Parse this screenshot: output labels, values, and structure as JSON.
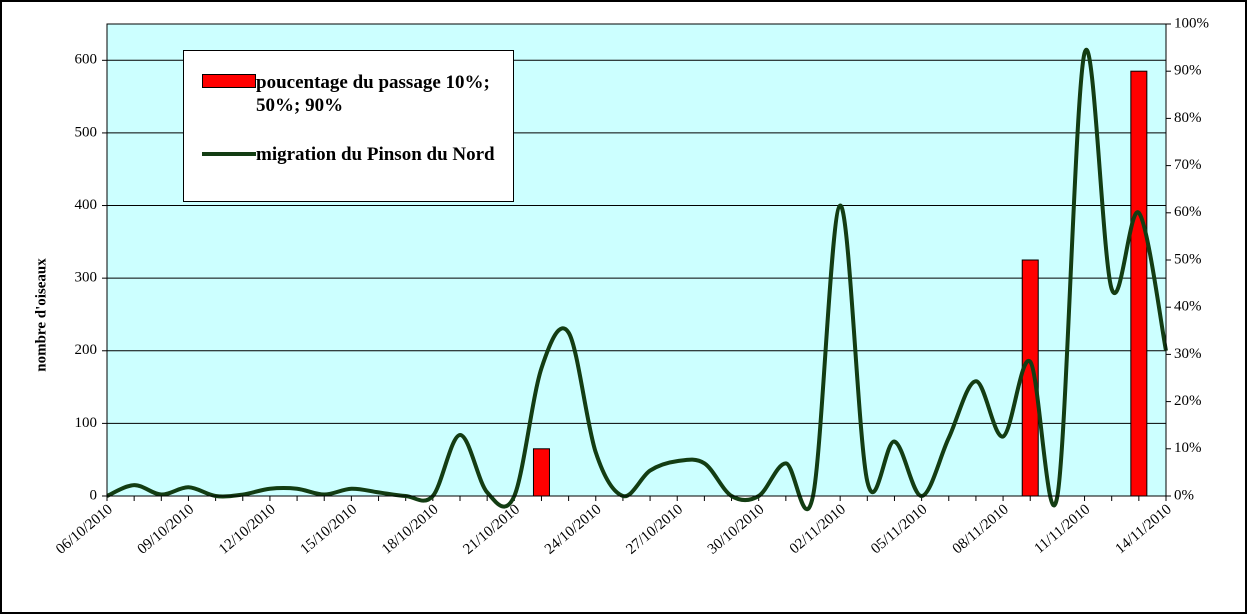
{
  "chart_data": {
    "type": "combo",
    "ylabel": "nombre d'oiseaux",
    "categories": [
      "06/10/2010",
      null,
      null,
      "09/10/2010",
      null,
      null,
      "12/10/2010",
      null,
      null,
      "15/10/2010",
      null,
      null,
      "18/10/2010",
      null,
      null,
      "21/10/2010",
      null,
      null,
      "24/10/2010",
      null,
      null,
      "27/10/2010",
      null,
      null,
      "30/10/2010",
      null,
      null,
      "02/11/2010",
      null,
      null,
      "05/11/2010",
      null,
      null,
      "08/11/2010",
      null,
      null,
      "11/11/2010",
      null,
      null,
      "14/11/2010"
    ],
    "series": [
      {
        "name": "poucentage du passage 10%; 50%; 90%",
        "type": "bar",
        "axis": "y2",
        "color": "#ff0000",
        "values": [
          null,
          null,
          null,
          null,
          null,
          null,
          null,
          null,
          null,
          null,
          null,
          null,
          null,
          null,
          null,
          null,
          10,
          null,
          null,
          null,
          null,
          null,
          null,
          null,
          null,
          null,
          null,
          null,
          null,
          null,
          null,
          null,
          null,
          null,
          50,
          null,
          null,
          null,
          90,
          null
        ]
      },
      {
        "name": "migration du Pinson du Nord",
        "type": "line",
        "color": "#133d13",
        "values": [
          0,
          15,
          2,
          12,
          0,
          2,
          10,
          10,
          2,
          10,
          5,
          0,
          0,
          84,
          5,
          0,
          176,
          225,
          60,
          0,
          35,
          48,
          45,
          0,
          0,
          45,
          0,
          400,
          20,
          75,
          0,
          80,
          158,
          82,
          185,
          0,
          610,
          285,
          390,
          200
        ]
      }
    ],
    "ylim": [
      0,
      650
    ],
    "yticks": [
      0,
      100,
      200,
      300,
      400,
      500,
      600
    ],
    "y2lim": [
      0,
      100
    ],
    "y2ticks": [
      {
        "value": 0,
        "label": "0%"
      },
      {
        "value": 10,
        "label": "10%"
      },
      {
        "value": 20,
        "label": "20%"
      },
      {
        "value": 30,
        "label": "30%"
      },
      {
        "value": 40,
        "label": "40%"
      },
      {
        "value": 50,
        "label": "50%"
      },
      {
        "value": 60,
        "label": "60%"
      },
      {
        "value": 70,
        "label": "70%"
      },
      {
        "value": 80,
        "label": "80%"
      },
      {
        "value": 90,
        "label": "90%"
      },
      {
        "value": 100,
        "label": "100%"
      }
    ],
    "grid": true,
    "background": "#ccffff"
  }
}
